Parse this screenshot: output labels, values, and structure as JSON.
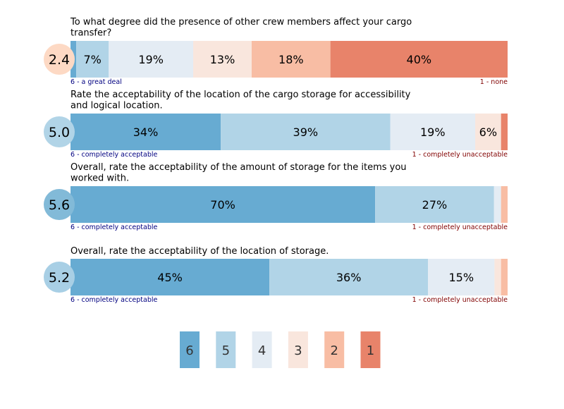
{
  "chart_data": {
    "type": "bar",
    "subtype": "stacked-100-horizontal",
    "scale_levels": [
      "6",
      "5",
      "4",
      "3",
      "2",
      "1"
    ],
    "colors": {
      "6": "#67abd2",
      "5": "#b1d4e7",
      "4": "#e4ecf4",
      "3": "#f9e6dd",
      "2": "#f8bda4",
      "1": "#e8836a"
    },
    "questions": [
      {
        "title_lines": [
          "To what degree did the presence of other crew members affect your cargo",
          "transfer?"
        ],
        "score": "2.4",
        "score_color": "#fdd9c4",
        "values": [
          1.3,
          7.4,
          19.2,
          13.3,
          17.9,
          40.3
        ],
        "labels": [
          "",
          "7%",
          "19%",
          "13%",
          "18%",
          "40%"
        ],
        "left_anchor": "6 - a great deal",
        "right_anchor": "1 - none"
      },
      {
        "title_lines": [
          "Rate the acceptability of the location of the cargo storage for accessibility",
          "and logical location."
        ],
        "score": "5.0",
        "score_color": "#b1d4e7",
        "values": [
          34.3,
          38.7,
          19.4,
          5.9,
          0,
          1.5
        ],
        "labels": [
          "34%",
          "39%",
          "19%",
          "6%",
          "",
          ""
        ],
        "left_anchor": "6 - completely acceptable",
        "right_anchor": "1 - completely unacceptable"
      },
      {
        "title_lines": [
          "Overall, rate the acceptability of the amount of storage for the items you",
          "worked with."
        ],
        "score": "5.6",
        "score_color": "#82bad8",
        "values": [
          69.7,
          27.2,
          1.6,
          0,
          1.5,
          0
        ],
        "labels": [
          "70%",
          "27%",
          "",
          "",
          "",
          ""
        ],
        "left_anchor": "6 - completely acceptable",
        "right_anchor": "1 - completely unacceptable"
      },
      {
        "title_lines": [
          "Overall, rate the acceptability of the location of storage."
        ],
        "score": "5.2",
        "score_color": "#a8cfe5",
        "values": [
          45.5,
          36.3,
          15.2,
          1.5,
          1.5,
          0
        ],
        "labels": [
          "45%",
          "36%",
          "15%",
          "",
          "",
          ""
        ],
        "left_anchor": "6 - completely acceptable",
        "right_anchor": "1 - completely unacceptable"
      }
    ],
    "left_anchor_color": "#000080",
    "right_anchor_color": "#800000"
  }
}
